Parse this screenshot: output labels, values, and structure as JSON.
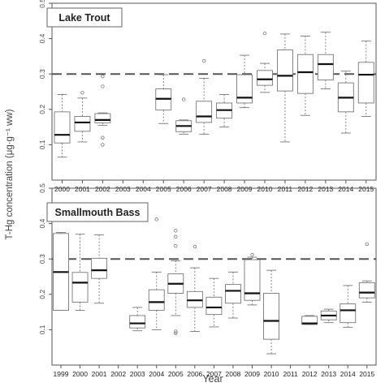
{
  "figure": {
    "ylabel": "T-Hg concentration (μg·g⁻¹ ww)",
    "xlabel": "Year"
  },
  "chart_data": [
    {
      "type": "box",
      "title": "Lake Trout",
      "ylim": [
        0,
        0.5
      ],
      "yticks": [
        0.1,
        0.2,
        0.3,
        0.4,
        0.5
      ],
      "reference_line": 0.3,
      "categories": [
        "2000",
        "2001",
        "2002",
        "2003",
        "2004",
        "2005",
        "2006",
        "2007",
        "2008",
        "2009",
        "2010",
        "2011",
        "2012",
        "2013",
        "2014",
        "2015"
      ],
      "boxes": [
        {
          "year": "2000",
          "whisker_low": 0.065,
          "q1": 0.105,
          "median": 0.128,
          "q3": 0.193,
          "whisker_high": 0.242,
          "outliers": []
        },
        {
          "year": "2001",
          "whisker_low": 0.108,
          "q1": 0.138,
          "median": 0.163,
          "q3": 0.18,
          "whisker_high": 0.232,
          "outliers": [
            0.247
          ]
        },
        {
          "year": "2002",
          "whisker_low": 0.155,
          "q1": 0.162,
          "median": 0.17,
          "q3": 0.188,
          "whisker_high": 0.19,
          "outliers": [
            0.293,
            0.265,
            0.12,
            0.1
          ]
        },
        null,
        null,
        {
          "year": "2005",
          "whisker_low": 0.16,
          "q1": 0.198,
          "median": 0.23,
          "q3": 0.258,
          "whisker_high": 0.298,
          "outliers": []
        },
        {
          "year": "2006",
          "whisker_low": 0.13,
          "q1": 0.137,
          "median": 0.153,
          "q3": 0.168,
          "whisker_high": 0.17,
          "outliers": [
            0.228
          ]
        },
        {
          "year": "2007",
          "whisker_low": 0.13,
          "q1": 0.163,
          "median": 0.18,
          "q3": 0.223,
          "whisker_high": 0.288,
          "outliers": [
            0.337
          ]
        },
        {
          "year": "2008",
          "whisker_low": 0.15,
          "q1": 0.175,
          "median": 0.198,
          "q3": 0.218,
          "whisker_high": 0.242,
          "outliers": []
        },
        {
          "year": "2009",
          "whisker_low": 0.205,
          "q1": 0.218,
          "median": 0.233,
          "q3": 0.298,
          "whisker_high": 0.353,
          "outliers": []
        },
        {
          "year": "2010",
          "whisker_low": 0.248,
          "q1": 0.268,
          "median": 0.285,
          "q3": 0.31,
          "whisker_high": 0.33,
          "outliers": [
            0.415
          ]
        },
        {
          "year": "2011",
          "whisker_low": 0.108,
          "q1": 0.252,
          "median": 0.295,
          "q3": 0.368,
          "whisker_high": 0.413,
          "outliers": []
        },
        {
          "year": "2012",
          "whisker_low": 0.183,
          "q1": 0.245,
          "median": 0.305,
          "q3": 0.355,
          "whisker_high": 0.407,
          "outliers": []
        },
        {
          "year": "2013",
          "whisker_low": 0.258,
          "q1": 0.283,
          "median": 0.328,
          "q3": 0.355,
          "whisker_high": 0.418,
          "outliers": []
        },
        {
          "year": "2014",
          "whisker_low": 0.133,
          "q1": 0.193,
          "median": 0.233,
          "q3": 0.275,
          "whisker_high": 0.308,
          "outliers": []
        },
        {
          "year": "2015",
          "whisker_low": 0.18,
          "q1": 0.218,
          "median": 0.298,
          "q3": 0.333,
          "whisker_high": 0.393,
          "outliers": []
        }
      ]
    },
    {
      "type": "box",
      "title": "Smallmouth Bass",
      "ylim": [
        0,
        0.5
      ],
      "yticks": [
        0.1,
        0.2,
        0.3,
        0.4,
        0.5
      ],
      "reference_line": 0.3,
      "categories": [
        "1999",
        "2000",
        "2001",
        "2002",
        "2003",
        "2004",
        "2005",
        "2006",
        "2007",
        "2008",
        "2009",
        "2010",
        "2011",
        "2012",
        "2013",
        "2014",
        "2015"
      ],
      "boxes": [
        {
          "year": "1999",
          "whisker_low": 0.155,
          "q1": 0.155,
          "median": 0.263,
          "q3": 0.372,
          "whisker_high": 0.375,
          "outliers": []
        },
        {
          "year": "2000",
          "whisker_low": 0.155,
          "q1": 0.178,
          "median": 0.233,
          "q3": 0.262,
          "whisker_high": 0.37,
          "outliers": []
        },
        {
          "year": "2001",
          "whisker_low": 0.175,
          "q1": 0.245,
          "median": 0.268,
          "q3": 0.302,
          "whisker_high": 0.368,
          "outliers": [
            0.42
          ]
        },
        null,
        {
          "year": "2003",
          "whisker_low": 0.097,
          "q1": 0.105,
          "median": 0.118,
          "q3": 0.14,
          "whisker_high": 0.163,
          "outliers": []
        },
        {
          "year": "2004",
          "whisker_low": 0.1,
          "q1": 0.155,
          "median": 0.178,
          "q3": 0.213,
          "whisker_high": 0.263,
          "outliers": [
            0.412
          ]
        },
        {
          "year": "2005",
          "whisker_low": 0.14,
          "q1": 0.203,
          "median": 0.23,
          "q3": 0.258,
          "whisker_high": 0.295,
          "outliers": [
            0.38,
            0.363,
            0.337,
            0.095,
            0.09
          ]
        },
        {
          "year": "2006",
          "whisker_low": 0.095,
          "q1": 0.163,
          "median": 0.183,
          "q3": 0.208,
          "whisker_high": 0.275,
          "outliers": [
            0.335
          ]
        },
        {
          "year": "2007",
          "whisker_low": 0.108,
          "q1": 0.143,
          "median": 0.163,
          "q3": 0.192,
          "whisker_high": 0.245,
          "outliers": []
        },
        {
          "year": "2008",
          "whisker_low": 0.133,
          "q1": 0.175,
          "median": 0.21,
          "q3": 0.228,
          "whisker_high": 0.263,
          "outliers": []
        },
        {
          "year": "2009",
          "whisker_low": 0.17,
          "q1": 0.183,
          "median": 0.203,
          "q3": 0.298,
          "whisker_high": 0.305,
          "outliers": [
            0.312
          ]
        },
        {
          "year": "2010",
          "whisker_low": 0.032,
          "q1": 0.073,
          "median": 0.125,
          "q3": 0.203,
          "whisker_high": 0.268,
          "outliers": []
        },
        null,
        {
          "year": "2012",
          "whisker_low": 0.115,
          "q1": 0.115,
          "median": 0.118,
          "q3": 0.138,
          "whisker_high": 0.14,
          "outliers": []
        },
        {
          "year": "2013",
          "whisker_low": 0.12,
          "q1": 0.128,
          "median": 0.14,
          "q3": 0.153,
          "whisker_high": 0.158,
          "outliers": []
        },
        {
          "year": "2014",
          "whisker_low": 0.107,
          "q1": 0.12,
          "median": 0.155,
          "q3": 0.173,
          "whisker_high": 0.225,
          "outliers": []
        },
        {
          "year": "2015",
          "whisker_low": 0.178,
          "q1": 0.19,
          "median": 0.205,
          "q3": 0.233,
          "whisker_high": 0.238,
          "outliers": [
            0.342
          ]
        }
      ]
    }
  ]
}
